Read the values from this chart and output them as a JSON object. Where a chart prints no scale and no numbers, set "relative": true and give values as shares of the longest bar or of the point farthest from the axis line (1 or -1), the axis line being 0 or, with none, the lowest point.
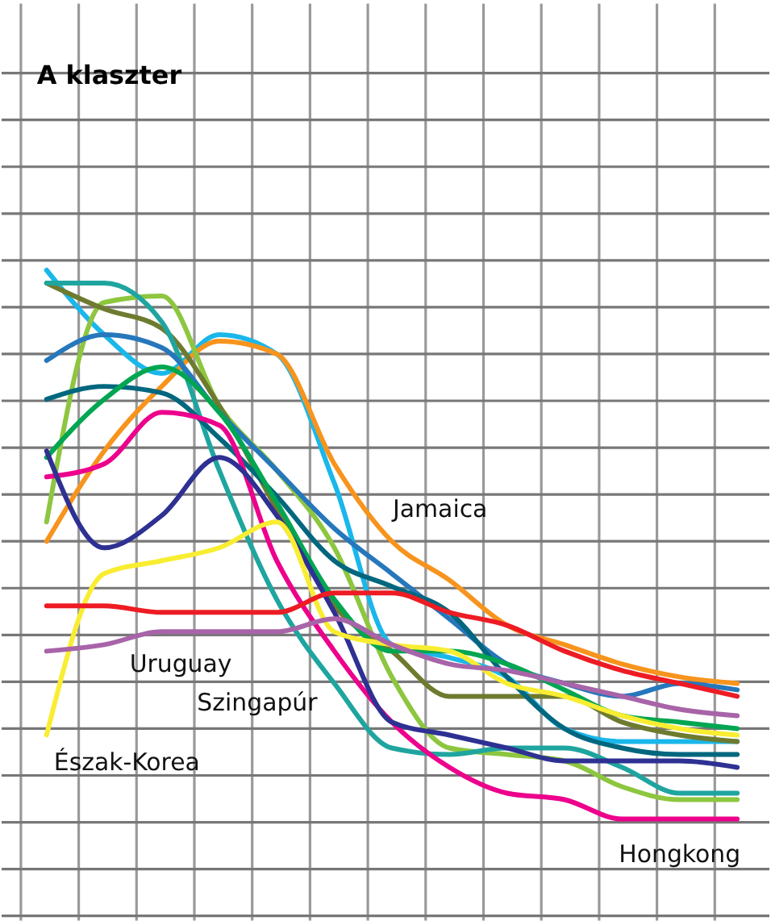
{
  "chart_data": {
    "type": "line",
    "title": "A klaszter",
    "relative": true,
    "grid": true,
    "legend": false,
    "marker": "none",
    "line_style": "solid",
    "categories": [
      null,
      null,
      null,
      null,
      null,
      null,
      null,
      null,
      null,
      null,
      null,
      null,
      null
    ],
    "series": [
      {
        "color": "#1ab7ea",
        "values": [
          1.0,
          0.9,
          0.84,
          0.9,
          0.87,
          0.67,
          0.42,
          0.4,
          0.37,
          0.29,
          0.27,
          0.27,
          0.27
        ]
      },
      {
        "name": "Jamaica",
        "color": "#f7941d",
        "values": [
          0.58,
          0.72,
          0.82,
          0.89,
          0.87,
          0.7,
          0.58,
          0.52,
          0.45,
          0.42,
          0.39,
          0.37,
          0.36
        ]
      },
      {
        "color": "#8dc63f",
        "values": [
          0.61,
          0.95,
          0.96,
          0.79,
          0.69,
          0.57,
          0.37,
          0.26,
          0.25,
          0.24,
          0.2,
          0.18,
          0.18
        ]
      },
      {
        "color": "#6e7b2f",
        "values": [
          0.98,
          0.94,
          0.91,
          0.79,
          0.63,
          0.48,
          0.41,
          0.34,
          0.34,
          0.34,
          0.3,
          0.28,
          0.27
        ]
      },
      {
        "name": "Szingapúr",
        "color": "#1fa59f",
        "values": [
          0.98,
          0.98,
          0.92,
          0.69,
          0.49,
          0.36,
          0.26,
          0.25,
          0.26,
          0.26,
          0.23,
          0.19,
          0.19
        ]
      },
      {
        "color": "#2677bb",
        "values": [
          0.86,
          0.9,
          0.88,
          0.78,
          0.69,
          0.6,
          0.53,
          0.46,
          0.39,
          0.36,
          0.34,
          0.36,
          0.35
        ]
      },
      {
        "color": "#00677f",
        "values": [
          0.8,
          0.82,
          0.81,
          0.74,
          0.65,
          0.55,
          0.51,
          0.47,
          0.37,
          0.29,
          0.26,
          0.25,
          0.25
        ]
      },
      {
        "color": "#00a651",
        "values": [
          0.71,
          0.8,
          0.85,
          0.78,
          0.64,
          0.49,
          0.41,
          0.41,
          0.39,
          0.35,
          0.31,
          0.3,
          0.29
        ]
      },
      {
        "name": "Hongkong",
        "color": "#ec008c",
        "values": [
          0.68,
          0.7,
          0.78,
          0.76,
          0.55,
          0.41,
          0.3,
          0.23,
          0.19,
          0.18,
          0.15,
          0.15,
          0.15
        ]
      },
      {
        "color": "#2e3192",
        "values": [
          0.72,
          0.57,
          0.62,
          0.71,
          0.62,
          0.47,
          0.3,
          0.28,
          0.26,
          0.24,
          0.24,
          0.24,
          0.23
        ]
      },
      {
        "name": "Észak-Korea",
        "color": "#f9ed32",
        "values": [
          0.28,
          0.53,
          0.55,
          0.57,
          0.61,
          0.44,
          0.42,
          0.41,
          0.36,
          0.34,
          0.31,
          0.29,
          0.28
        ]
      },
      {
        "color": "#ed1c24",
        "values": [
          0.48,
          0.48,
          0.47,
          0.47,
          0.47,
          0.5,
          0.5,
          0.47,
          0.45,
          0.41,
          0.38,
          0.36,
          0.34
        ]
      },
      {
        "name": "Uruguay",
        "color": "#a864a8",
        "values": [
          0.41,
          0.42,
          0.44,
          0.44,
          0.44,
          0.46,
          0.42,
          0.39,
          0.38,
          0.36,
          0.34,
          0.32,
          0.31
        ]
      }
    ]
  }
}
